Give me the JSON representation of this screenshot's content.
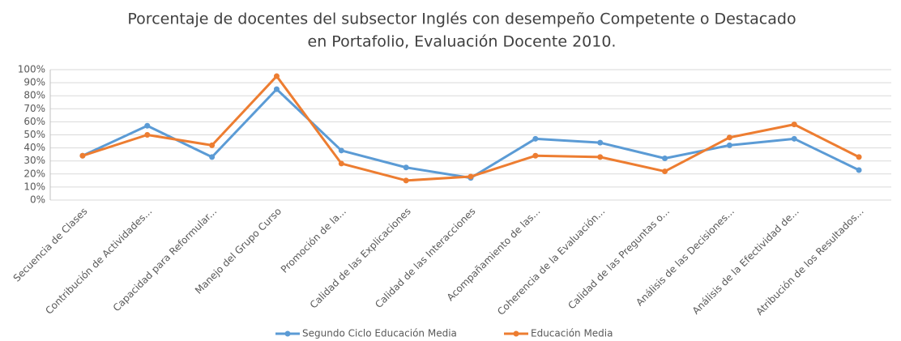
{
  "chart_data": {
    "type": "line",
    "title": [
      "Porcentaje de docentes del subsector Inglés con desempeño Competente o Destacado",
      "en Portafolio, Evaluación Docente 2010."
    ],
    "categories": [
      "Secuencia de Clases",
      "Contribución de Actividades...",
      "Capacidad para Reformular...",
      "Manejo del Grupo Curso",
      "Promoción de la...",
      "Calidad de las Explicaciones",
      "Calidad de las Interacciones",
      "Acompañamiento de las...",
      "Coherencia de la Evaluación...",
      "Calidad de las Preguntas o...",
      "Análisis de las Decisiones...",
      "Análisis de la Efectividad de...",
      "Atribución de los Resultados..."
    ],
    "series": [
      {
        "name": "Segundo Ciclo Educación Media",
        "color": "#5b9bd5",
        "values": [
          34,
          57,
          33,
          85,
          38,
          25,
          17,
          47,
          44,
          32,
          42,
          47,
          23
        ]
      },
      {
        "name": "Educación Media",
        "color": "#ed7d31",
        "values": [
          34,
          50,
          42,
          95,
          28,
          15,
          18,
          34,
          33,
          22,
          48,
          58,
          33
        ]
      }
    ],
    "ylim": [
      0,
      100
    ],
    "yticks": [
      {
        "value": 0,
        "label": "0%"
      },
      {
        "value": 10,
        "label": "10%"
      },
      {
        "value": 20,
        "label": "20%"
      },
      {
        "value": 30,
        "label": "30%"
      },
      {
        "value": 40,
        "label": "40%"
      },
      {
        "value": 50,
        "label": "50%"
      },
      {
        "value": 60,
        "label": "60%"
      },
      {
        "value": 70,
        "label": "70%"
      },
      {
        "value": 80,
        "label": "80%"
      },
      {
        "value": 90,
        "label": "90%"
      },
      {
        "value": 100,
        "label": "100%"
      }
    ],
    "grid": true,
    "legend": "bottom"
  }
}
